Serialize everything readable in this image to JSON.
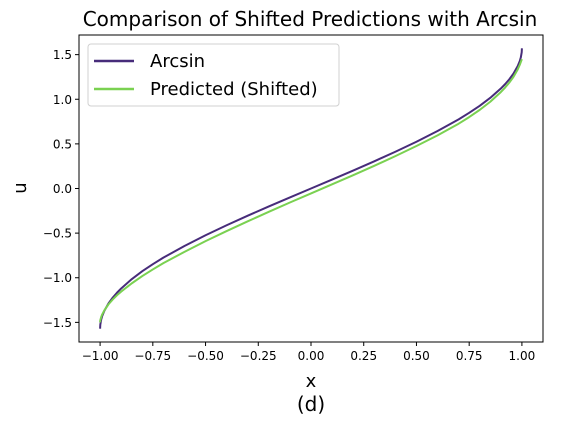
{
  "chart_data": {
    "type": "line",
    "title": "Comparison of Shifted Predictions with Arcsin",
    "xlabel": "x",
    "ylabel": "u",
    "caption": "(d)",
    "xlim": [
      -1.1,
      1.1
    ],
    "ylim": [
      -1.72,
      1.72
    ],
    "x_ticks": [
      -1.0,
      -0.75,
      -0.5,
      -0.25,
      0.0,
      0.25,
      0.5,
      0.75,
      1.0
    ],
    "x_tick_labels": [
      "−1.00",
      "−0.75",
      "−0.50",
      "−0.25",
      "0.00",
      "0.25",
      "0.50",
      "0.75",
      "1.00"
    ],
    "y_ticks": [
      -1.5,
      -1.0,
      -0.5,
      0.0,
      0.5,
      1.0,
      1.5
    ],
    "y_tick_labels": [
      "−1.5",
      "−1.0",
      "−0.5",
      "0.0",
      "0.5",
      "1.0",
      "1.5"
    ],
    "grid": false,
    "legend_position": "top-left",
    "series": [
      {
        "name": "Arcsin",
        "color": "#472c7a",
        "x": [
          -1.0,
          -0.999,
          -0.995,
          -0.99,
          -0.98,
          -0.96,
          -0.94,
          -0.92,
          -0.9,
          -0.85,
          -0.8,
          -0.75,
          -0.7,
          -0.6,
          -0.5,
          -0.4,
          -0.3,
          -0.2,
          -0.1,
          0.0,
          0.1,
          0.2,
          0.3,
          0.4,
          0.5,
          0.6,
          0.7,
          0.75,
          0.8,
          0.85,
          0.9,
          0.92,
          0.94,
          0.96,
          0.98,
          0.99,
          0.995,
          0.999,
          1.0
        ],
        "y": [
          -1.571,
          -1.526,
          -1.471,
          -1.429,
          -1.371,
          -1.287,
          -1.223,
          -1.168,
          -1.12,
          -1.016,
          -0.927,
          -0.848,
          -0.775,
          -0.644,
          -0.524,
          -0.412,
          -0.305,
          -0.201,
          -0.1,
          0.0,
          0.1,
          0.201,
          0.305,
          0.412,
          0.524,
          0.644,
          0.775,
          0.848,
          0.927,
          1.016,
          1.12,
          1.168,
          1.223,
          1.287,
          1.371,
          1.429,
          1.471,
          1.526,
          1.571
        ]
      },
      {
        "name": "Predicted (Shifted)",
        "color": "#7ad151",
        "x": [
          -1.0,
          -0.999,
          -0.995,
          -0.99,
          -0.98,
          -0.96,
          -0.94,
          -0.92,
          -0.9,
          -0.85,
          -0.8,
          -0.75,
          -0.7,
          -0.6,
          -0.5,
          -0.4,
          -0.3,
          -0.2,
          -0.1,
          0.0,
          0.1,
          0.2,
          0.3,
          0.4,
          0.5,
          0.6,
          0.7,
          0.75,
          0.8,
          0.85,
          0.9,
          0.92,
          0.94,
          0.96,
          0.98,
          0.99,
          0.995,
          0.999,
          1.0
        ],
        "y": [
          -1.5,
          -1.476,
          -1.441,
          -1.411,
          -1.366,
          -1.297,
          -1.243,
          -1.196,
          -1.155,
          -1.063,
          -0.981,
          -0.907,
          -0.836,
          -0.71,
          -0.59,
          -0.477,
          -0.368,
          -0.261,
          -0.157,
          -0.055,
          0.047,
          0.149,
          0.254,
          0.363,
          0.476,
          0.595,
          0.726,
          0.8,
          0.881,
          0.972,
          1.08,
          1.13,
          1.186,
          1.251,
          1.334,
          1.387,
          1.418,
          1.444,
          1.45
        ]
      }
    ]
  }
}
